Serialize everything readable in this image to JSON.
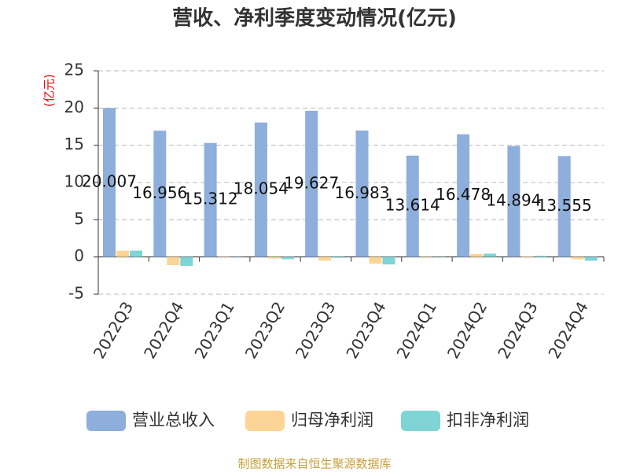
{
  "chart_data": {
    "type": "bar",
    "title": "营收、净利季度变动情况(亿元)",
    "y_label": "(亿元)",
    "categories": [
      "2022Q3",
      "2022Q4",
      "2023Q1",
      "2023Q2",
      "2023Q3",
      "2023Q4",
      "2024Q1",
      "2024Q2",
      "2024Q3",
      "2024Q4"
    ],
    "series": [
      {
        "name": "营业总收入",
        "color": "#8eaedb",
        "values": [
          20.007,
          16.956,
          15.312,
          18.054,
          19.627,
          16.983,
          13.614,
          16.478,
          14.894,
          13.555
        ],
        "show_labels": true
      },
      {
        "name": "归母净利润",
        "color": "#fcd596",
        "values": [
          0.85,
          -1.1,
          0.05,
          -0.2,
          -0.5,
          -0.9,
          0.05,
          0.4,
          0.1,
          -0.3
        ]
      },
      {
        "name": "扣非净利润",
        "color": "#7fd4d6",
        "values": [
          0.85,
          -1.2,
          0.03,
          -0.3,
          -0.1,
          -1.0,
          0.03,
          0.45,
          0.15,
          -0.5
        ]
      }
    ],
    "ylim": [
      -5,
      25
    ],
    "yticks": [
      -5,
      0,
      5,
      10,
      15,
      20,
      25
    ],
    "grid": true,
    "legend": "bottom",
    "source": "制图数据来自恒生聚源数据库"
  }
}
